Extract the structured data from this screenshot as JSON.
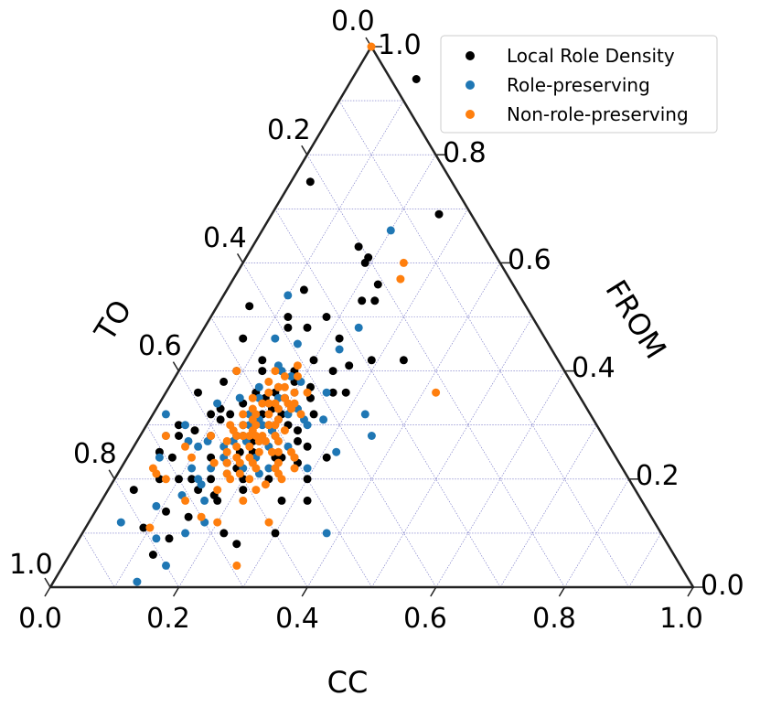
{
  "chart_data": {
    "type": "scatter",
    "subtype": "ternary",
    "axes": {
      "bottom": {
        "label": "CC",
        "ticks": [
          "0.0",
          "0.2",
          "0.4",
          "0.6",
          "0.8",
          "1.0"
        ]
      },
      "right": {
        "label": "FROM",
        "ticks": [
          "0.0",
          "0.2",
          "0.4",
          "0.6",
          "0.8",
          "1.0"
        ]
      },
      "left": {
        "label": "TO",
        "ticks": [
          "0.0",
          "0.2",
          "0.4",
          "0.6",
          "0.8",
          "1.0"
        ]
      }
    },
    "grid": true,
    "legend_position": "top-right",
    "colors": {
      "Local Role Density": "#000000",
      "Role-preserving": "#1f77b4",
      "Non-role-preserving": "#ff7f0e",
      "grid": "#3333aa"
    },
    "series": [
      {
        "name": "Local Role Density",
        "points": [
          [
            0.05,
            0.3
          ],
          [
            0.045,
            0.25
          ],
          [
            0.26,
            0.69
          ],
          [
            0.1,
            0.94
          ],
          [
            0.24,
            0.53
          ],
          [
            0.17,
            0.36
          ],
          [
            0.03,
            0.75
          ],
          [
            0.165,
            0.63
          ],
          [
            0.19,
            0.61
          ],
          [
            0.16,
            0.48
          ],
          [
            0.05,
            0.36
          ],
          [
            0.06,
            0.28
          ],
          [
            0.12,
            0.55
          ],
          [
            0.05,
            0.52
          ],
          [
            0.22,
            0.53
          ],
          [
            0.23,
            0.56
          ],
          [
            0.18,
            0.5
          ],
          [
            0.08,
            0.38
          ],
          [
            0.09,
            0.32
          ],
          [
            0.11,
            0.28
          ],
          [
            0.2,
            0.42
          ],
          [
            0.13,
            0.4
          ],
          [
            0.12,
            0.42
          ],
          [
            0.14,
            0.36
          ],
          [
            0.19,
            0.35
          ],
          [
            0.18,
            0.4
          ],
          [
            0.1,
            0.2
          ],
          [
            0.09,
            0.11
          ],
          [
            0.12,
            0.2
          ],
          [
            0.15,
            0.13
          ],
          [
            0.13,
            0.06
          ],
          [
            0.22,
            0.1
          ],
          [
            0.18,
            0.22
          ],
          [
            0.25,
            0.08
          ],
          [
            0.28,
            0.16
          ],
          [
            0.32,
            0.16
          ],
          [
            0.23,
            0.24
          ],
          [
            0.2,
            0.31
          ],
          [
            0.25,
            0.32
          ],
          [
            0.28,
            0.36
          ],
          [
            0.31,
            0.24
          ],
          [
            0.24,
            0.4
          ],
          [
            0.26,
            0.36
          ],
          [
            0.2,
            0.2
          ],
          [
            0.27,
            0.26
          ],
          [
            0.3,
            0.2
          ],
          [
            0.29,
            0.42
          ],
          [
            0.22,
            0.46
          ],
          [
            0.26,
            0.41
          ],
          [
            0.24,
            0.24
          ],
          [
            0.13,
            0.24
          ],
          [
            0.07,
            0.2
          ],
          [
            0.04,
            0.18
          ],
          [
            0.15,
            0.28
          ],
          [
            0.12,
            0.32
          ],
          [
            0.15,
            0.3
          ],
          [
            0.18,
            0.27
          ],
          [
            0.2,
            0.32
          ],
          [
            0.22,
            0.3
          ],
          [
            0.17,
            0.32
          ],
          [
            0.11,
            0.31
          ],
          [
            0.1,
            0.33
          ],
          [
            0.15,
            0.2
          ],
          [
            0.16,
            0.23
          ],
          [
            0.19,
            0.25
          ],
          [
            0.21,
            0.28
          ],
          [
            0.23,
            0.35
          ],
          [
            0.25,
            0.27
          ],
          [
            0.19,
            0.3
          ],
          [
            0.22,
            0.37
          ],
          [
            0.16,
            0.4
          ],
          [
            0.18,
            0.33
          ],
          [
            0.2,
            0.29
          ],
          [
            0.24,
            0.29
          ],
          [
            0.14,
            0.18
          ],
          [
            0.11,
            0.14
          ],
          [
            0.14,
            0.09
          ],
          [
            0.08,
            0.29
          ],
          [
            0.07,
            0.24
          ],
          [
            0.13,
            0.34
          ],
          [
            0.19,
            0.6
          ],
          [
            0.12,
            0.5
          ],
          [
            0.21,
            0.18
          ],
          [
            0.17,
            0.17
          ],
          [
            0.24,
            0.2
          ],
          [
            0.09,
            0.4
          ],
          [
            0.16,
            0.28
          ],
          [
            0.19,
            0.38
          ],
          [
            0.17,
            0.25
          ],
          [
            0.18,
            0.16
          ],
          [
            0.13,
            0.48
          ],
          [
            0.07,
            0.46
          ],
          [
            0.27,
            0.23
          ],
          [
            0.3,
            0.1
          ],
          [
            0.16,
            0.35
          ],
          [
            0.34,
            0.42
          ]
        ]
      },
      {
        "name": "Role-preserving",
        "points": [
          [
            0.2,
            0.66
          ],
          [
            0.24,
            0.48
          ],
          [
            0.1,
            0.54
          ],
          [
            0.12,
            0.46
          ],
          [
            0.16,
            0.45
          ],
          [
            0.23,
            0.44
          ],
          [
            0.18,
            0.39
          ],
          [
            0.16,
            0.4
          ],
          [
            0.17,
            0.37
          ],
          [
            0.2,
            0.36
          ],
          [
            0.22,
            0.33
          ],
          [
            0.25,
            0.3
          ],
          [
            0.24,
            0.31
          ],
          [
            0.04,
            0.28
          ],
          [
            0.05,
            0.24
          ],
          [
            0.02,
            0.32
          ],
          [
            0.06,
            0.3
          ],
          [
            0.1,
            0.26
          ],
          [
            0.11,
            0.27
          ],
          [
            0.09,
            0.34
          ],
          [
            0.12,
            0.35
          ],
          [
            0.14,
            0.37
          ],
          [
            0.17,
            0.34
          ],
          [
            0.15,
            0.32
          ],
          [
            0.18,
            0.3
          ],
          [
            0.21,
            0.32
          ],
          [
            0.19,
            0.27
          ],
          [
            0.21,
            0.26
          ],
          [
            0.24,
            0.26
          ],
          [
            0.26,
            0.24
          ],
          [
            0.29,
            0.22
          ],
          [
            0.32,
            0.25
          ],
          [
            0.33,
            0.32
          ],
          [
            0.36,
            0.28
          ],
          [
            0.38,
            0.1
          ],
          [
            0.17,
            0.21
          ],
          [
            0.14,
            0.22
          ],
          [
            0.16,
            0.16
          ],
          [
            0.12,
            0.17
          ],
          [
            0.09,
            0.15
          ],
          [
            0.18,
            0.12
          ],
          [
            0.16,
            0.1
          ],
          [
            0.12,
            0.09
          ],
          [
            0.16,
            0.04
          ],
          [
            0.14,
            0.26
          ],
          [
            0.19,
            0.22
          ],
          [
            0.22,
            0.21
          ],
          [
            0.15,
            0.24
          ],
          [
            0.13,
            0.2
          ],
          [
            0.11,
            0.22
          ],
          [
            0.17,
            0.27
          ],
          [
            0.2,
            0.24
          ],
          [
            0.23,
            0.22
          ],
          [
            0.08,
            0.27
          ],
          [
            0.05,
            0.12
          ],
          [
            0.13,
            0.01
          ],
          [
            0.17,
            0.31
          ],
          [
            0.15,
            0.35
          ],
          [
            0.18,
            0.35
          ],
          [
            0.2,
            0.38
          ],
          [
            0.15,
            0.41
          ],
          [
            0.14,
            0.19
          ],
          [
            0.16,
            0.3
          ],
          [
            0.19,
            0.33
          ],
          [
            0.22,
            0.27
          ],
          [
            0.25,
            0.36
          ],
          [
            0.27,
            0.31
          ],
          [
            0.2,
            0.29
          ],
          [
            0.15,
            0.27
          ]
        ]
      },
      {
        "name": "Non-role-preserving",
        "points": [
          [
            0.0,
            1.0
          ],
          [
            0.25,
            0.6
          ],
          [
            0.26,
            0.57
          ],
          [
            0.42,
            0.36
          ],
          [
            0.05,
            0.22
          ],
          [
            0.04,
            0.28
          ],
          [
            0.09,
            0.4
          ],
          [
            0.08,
            0.2
          ],
          [
            0.11,
            0.28
          ],
          [
            0.14,
            0.23
          ],
          [
            0.17,
            0.24
          ],
          [
            0.16,
            0.26
          ],
          [
            0.18,
            0.26
          ],
          [
            0.19,
            0.27
          ],
          [
            0.2,
            0.25
          ],
          [
            0.21,
            0.22
          ],
          [
            0.22,
            0.25
          ],
          [
            0.17,
            0.29
          ],
          [
            0.16,
            0.31
          ],
          [
            0.15,
            0.33
          ],
          [
            0.18,
            0.32
          ],
          [
            0.19,
            0.3
          ],
          [
            0.2,
            0.3
          ],
          [
            0.21,
            0.28
          ],
          [
            0.22,
            0.27
          ],
          [
            0.23,
            0.25
          ],
          [
            0.24,
            0.23
          ],
          [
            0.25,
            0.25
          ],
          [
            0.14,
            0.29
          ],
          [
            0.15,
            0.28
          ],
          [
            0.16,
            0.28
          ],
          [
            0.17,
            0.28
          ],
          [
            0.18,
            0.28
          ],
          [
            0.19,
            0.28
          ],
          [
            0.16,
            0.34
          ],
          [
            0.17,
            0.34
          ],
          [
            0.18,
            0.34
          ],
          [
            0.19,
            0.33
          ],
          [
            0.17,
            0.37
          ],
          [
            0.18,
            0.37
          ],
          [
            0.16,
            0.36
          ],
          [
            0.19,
            0.35
          ],
          [
            0.2,
            0.34
          ],
          [
            0.14,
            0.32
          ],
          [
            0.13,
            0.3
          ],
          [
            0.14,
            0.27
          ],
          [
            0.15,
            0.25
          ],
          [
            0.16,
            0.23
          ],
          [
            0.17,
            0.21
          ],
          [
            0.19,
            0.21
          ],
          [
            0.21,
            0.2
          ],
          [
            0.24,
            0.22
          ],
          [
            0.25,
            0.21
          ],
          [
            0.26,
            0.2
          ],
          [
            0.28,
            0.12
          ],
          [
            0.22,
            0.16
          ],
          [
            0.27,
            0.04
          ],
          [
            0.2,
            0.12
          ],
          [
            0.1,
            0.11
          ],
          [
            0.17,
            0.13
          ],
          [
            0.13,
            0.16
          ],
          [
            0.1,
            0.24
          ],
          [
            0.08,
            0.26
          ],
          [
            0.06,
            0.21
          ],
          [
            0.19,
            0.39
          ],
          [
            0.2,
            0.23
          ],
          [
            0.18,
            0.2
          ],
          [
            0.17,
            0.18
          ],
          [
            0.15,
            0.3
          ],
          [
            0.21,
            0.33
          ],
          [
            0.15,
            0.4
          ],
          [
            0.23,
            0.18
          ],
          [
            0.24,
            0.19
          ],
          [
            0.26,
            0.24
          ],
          [
            0.27,
            0.22
          ],
          [
            0.2,
            0.36
          ],
          [
            0.22,
            0.36
          ],
          [
            0.17,
            0.39
          ],
          [
            0.18,
            0.41
          ],
          [
            0.14,
            0.35
          ],
          [
            0.16,
            0.32
          ],
          [
            0.17,
            0.3
          ],
          [
            0.19,
            0.24
          ],
          [
            0.2,
            0.27
          ],
          [
            0.22,
            0.29
          ],
          [
            0.23,
            0.32
          ],
          [
            0.21,
            0.34
          ],
          [
            0.15,
            0.38
          ],
          [
            0.2,
            0.31
          ],
          [
            0.18,
            0.23
          ]
        ]
      }
    ]
  }
}
